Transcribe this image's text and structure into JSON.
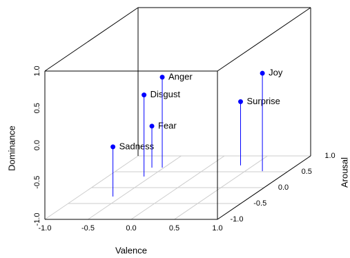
{
  "chart_data": {
    "type": "scatter3d",
    "categories": [
      "Sadness",
      "Disgust",
      "Fear",
      "Anger",
      "Surprise",
      "Joy"
    ],
    "x": [
      -0.6,
      -0.58,
      -0.64,
      -0.52,
      0.35,
      0.7
    ],
    "y": [
      -0.28,
      0.35,
      0.63,
      0.63,
      0.7,
      0.52
    ],
    "z": [
      -0.33,
      0.1,
      -0.44,
      0.22,
      -0.14,
      0.32
    ],
    "color": "#0000ff",
    "xlabel": "Valence",
    "ylabel": "Arousal",
    "zlabel": "Dominance",
    "xlim": [
      -1,
      1
    ],
    "ylim": [
      -1,
      1
    ],
    "zlim": [
      -1,
      1
    ],
    "xticks": [
      {
        "value": -1,
        "label": "-1.0"
      },
      {
        "value": -0.5,
        "label": "-0.5"
      },
      {
        "value": 0,
        "label": "0.0"
      },
      {
        "value": 0.5,
        "label": "0.5"
      },
      {
        "value": 1,
        "label": "1.0"
      }
    ],
    "yticks": [
      {
        "value": -1,
        "label": "-1.0"
      },
      {
        "value": -0.5,
        "label": "-0.5"
      },
      {
        "value": 0,
        "label": "0.0"
      },
      {
        "value": 0.5,
        "label": "0.5"
      },
      {
        "value": 1,
        "label": "1.0"
      }
    ],
    "zticks": [
      {
        "value": -1,
        "label": "-1.0"
      },
      {
        "value": -0.5,
        "label": "-0.5"
      },
      {
        "value": 0,
        "label": "0.0"
      },
      {
        "value": 0.5,
        "label": "0.5"
      },
      {
        "value": 1,
        "label": "1.0"
      }
    ],
    "grid": true
  }
}
